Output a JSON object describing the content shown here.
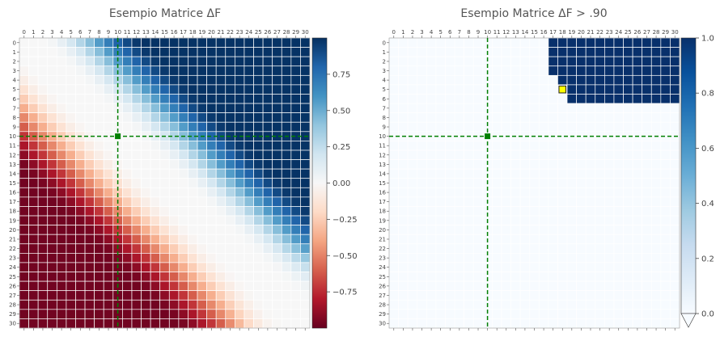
{
  "chart_data": [
    {
      "type": "heatmap",
      "title": "Esempio Matrice ΔF",
      "rows": 31,
      "cols": 31,
      "tick_labels": [
        "0",
        "1",
        "2",
        "3",
        "4",
        "5",
        "6",
        "7",
        "8",
        "9",
        "10",
        "11",
        "12",
        "13",
        "14",
        "15",
        "16",
        "17",
        "18",
        "19",
        "20",
        "21",
        "22",
        "23",
        "24",
        "25",
        "26",
        "27",
        "28",
        "29",
        "30"
      ],
      "value_model": "ΔF[i][j] increases from about -0.95 (lower-left, rows ≥ 19 / cols ≤ 5) to about +0.99 (upper-right, rows ≤ 5 / cols ≥ 22); approximately zero on and below the diagonal toward the lower-right corner",
      "colormap": "RdBu",
      "colorbar": {
        "min": -1.0,
        "max": 1.0,
        "ticks": [
          0.75,
          0.5,
          0.25,
          0.0,
          -0.25,
          -0.5,
          -0.75
        ],
        "tick_labels": [
          "0.75",
          "0.50",
          "0.25",
          "0.00",
          "−0.25",
          "−0.50",
          "−0.75"
        ]
      },
      "highlight_index": 10,
      "highlight_color": "#008000",
      "grid": true
    },
    {
      "type": "heatmap",
      "title": "Esempio Matrice ΔF > .90",
      "rows": 31,
      "cols": 31,
      "tick_labels": [
        "0",
        "1",
        "2",
        "3",
        "4",
        "5",
        "6",
        "7",
        "8",
        "9",
        "10",
        "11",
        "12",
        "13",
        "14",
        "15",
        "16",
        "17",
        "18",
        "19",
        "20",
        "21",
        "22",
        "23",
        "24",
        "25",
        "26",
        "27",
        "28",
        "29",
        "30"
      ],
      "true_region": [
        {
          "rows": [
            0,
            3
          ],
          "cols": [
            17,
            30
          ]
        },
        {
          "rows": [
            4,
            4
          ],
          "cols": [
            18,
            30
          ]
        },
        {
          "rows": [
            5,
            6
          ],
          "cols": [
            19,
            30
          ]
        }
      ],
      "special_cell": {
        "row": 5,
        "col": 18,
        "color": "#ffff00"
      },
      "colormap": "Blues",
      "colorbar": {
        "min": 0.0,
        "max": 1.0,
        "ticks": [
          1.0,
          0.8,
          0.6,
          0.4,
          0.2,
          0.0
        ],
        "tick_labels": [
          "1.0",
          "0.8",
          "0.6",
          "0.4",
          "0.2",
          "0.0"
        ],
        "extend": "min"
      },
      "highlight_index": 10,
      "highlight_color": "#008000",
      "grid": true
    }
  ]
}
